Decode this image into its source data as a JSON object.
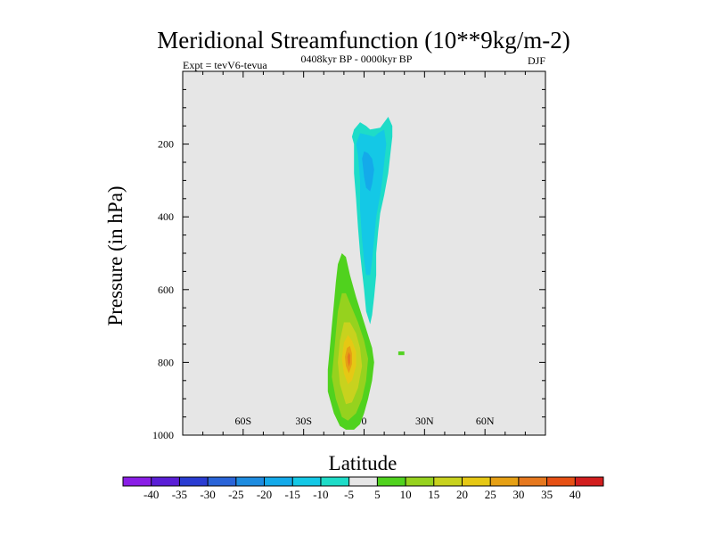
{
  "chart_data": {
    "type": "contour",
    "title": "Meridional Streamfunction (10**9kg/m-2)",
    "left_annotation": "Expt = tevV6-tevua",
    "center_annotation": "0408kyr BP - 0000kyr BP",
    "right_annotation": "DJF",
    "xlabel": "Latitude",
    "ylabel": "Pressure (in hPa)",
    "xlim": [
      -90,
      90
    ],
    "ylim": [
      1000,
      0
    ],
    "x_ticks": [
      {
        "value": -60,
        "label": "60S"
      },
      {
        "value": -30,
        "label": "30S"
      },
      {
        "value": 0,
        "label": "0"
      },
      {
        "value": 30,
        "label": "30N"
      },
      {
        "value": 60,
        "label": "60N"
      }
    ],
    "y_ticks": [
      {
        "value": 200,
        "label": "200"
      },
      {
        "value": 400,
        "label": "400"
      },
      {
        "value": 600,
        "label": "600"
      },
      {
        "value": 800,
        "label": "800"
      },
      {
        "value": 1000,
        "label": "1000"
      }
    ],
    "background_color": "#e6e6e6",
    "colorbar": {
      "orientation": "horizontal",
      "labels": [
        "-40",
        "-35",
        "-30",
        "-25",
        "-20",
        "-15",
        "-10",
        "-5",
        "5",
        "10",
        "15",
        "20",
        "25",
        "30",
        "35",
        "40"
      ],
      "colors": [
        "#8a1ee6",
        "#5a1ed6",
        "#2a3cd2",
        "#2a64d8",
        "#1e8ce0",
        "#14aaea",
        "#14c8e6",
        "#1edcc8",
        "#e6e6e6",
        "#50d21e",
        "#96d21e",
        "#c8d21e",
        "#e6c814",
        "#e6a014",
        "#e6781e",
        "#e65014",
        "#d21e1e"
      ]
    },
    "contours": [
      {
        "name": "negative cell",
        "value": -5,
        "color": "#1edcc8",
        "points": [
          [
            -5,
            200
          ],
          [
            -6,
            180
          ],
          [
            -5,
            160
          ],
          [
            -2,
            140
          ],
          [
            1,
            150
          ],
          [
            3,
            160
          ],
          [
            8,
            155
          ],
          [
            10,
            140
          ],
          [
            12,
            125
          ],
          [
            14,
            150
          ],
          [
            14,
            180
          ],
          [
            13,
            230
          ],
          [
            12,
            280
          ],
          [
            10,
            340
          ],
          [
            8,
            390
          ],
          [
            7,
            440
          ],
          [
            6,
            500
          ],
          [
            6,
            560
          ],
          [
            5,
            620
          ],
          [
            4,
            670
          ],
          [
            3,
            695
          ],
          [
            1,
            660
          ],
          [
            0,
            600
          ],
          [
            -1,
            550
          ],
          [
            -2,
            500
          ],
          [
            -3,
            430
          ],
          [
            -4,
            350
          ],
          [
            -5,
            280
          ]
        ]
      },
      {
        "name": "negative cell",
        "value": -10,
        "color": "#14c8e6",
        "points": [
          [
            -3,
            230
          ],
          [
            -4,
            200
          ],
          [
            -2,
            170
          ],
          [
            2,
            175
          ],
          [
            5,
            180
          ],
          [
            7,
            170
          ],
          [
            10,
            160
          ],
          [
            11,
            200
          ],
          [
            10,
            250
          ],
          [
            9,
            300
          ],
          [
            8,
            340
          ],
          [
            6,
            400
          ],
          [
            5,
            460
          ],
          [
            4,
            520
          ],
          [
            3,
            560
          ],
          [
            1,
            560
          ],
          [
            0,
            520
          ],
          [
            -1,
            460
          ],
          [
            -2,
            380
          ],
          [
            -2,
            300
          ]
        ]
      },
      {
        "name": "negative cell",
        "value": -15,
        "color": "#14aaea",
        "points": [
          [
            -1,
            240
          ],
          [
            0,
            220
          ],
          [
            2,
            225
          ],
          [
            4,
            240
          ],
          [
            5,
            270
          ],
          [
            4,
            310
          ],
          [
            3,
            330
          ],
          [
            1,
            320
          ],
          [
            0,
            290
          ]
        ]
      },
      {
        "name": "positive cell",
        "value": 5,
        "color": "#50d21e",
        "points": [
          [
            -15,
            940
          ],
          [
            -18,
            880
          ],
          [
            -18,
            820
          ],
          [
            -17,
            760
          ],
          [
            -16,
            700
          ],
          [
            -15,
            640
          ],
          [
            -14,
            580
          ],
          [
            -13,
            530
          ],
          [
            -11,
            500
          ],
          [
            -9,
            510
          ],
          [
            -7,
            560
          ],
          [
            -4,
            620
          ],
          [
            0,
            690
          ],
          [
            4,
            760
          ],
          [
            5,
            800
          ],
          [
            4,
            850
          ],
          [
            2,
            900
          ],
          [
            0,
            940
          ],
          [
            -2,
            970
          ],
          [
            -5,
            985
          ],
          [
            -9,
            985
          ],
          [
            -12,
            975
          ]
        ]
      },
      {
        "name": "positive cell",
        "value": 10,
        "color": "#96d21e",
        "points": [
          [
            -14,
            900
          ],
          [
            -16,
            840
          ],
          [
            -15,
            780
          ],
          [
            -14,
            720
          ],
          [
            -13,
            660
          ],
          [
            -11,
            610
          ],
          [
            -9,
            610
          ],
          [
            -6,
            650
          ],
          [
            -3,
            690
          ],
          [
            0,
            740
          ],
          [
            2,
            790
          ],
          [
            1,
            850
          ],
          [
            -1,
            900
          ],
          [
            -4,
            940
          ],
          [
            -8,
            960
          ],
          [
            -11,
            950
          ]
        ]
      },
      {
        "name": "positive cell",
        "value": 15,
        "color": "#c8d21e",
        "points": [
          [
            -12,
            860
          ],
          [
            -13,
            800
          ],
          [
            -12,
            740
          ],
          [
            -10,
            690
          ],
          [
            -7,
            690
          ],
          [
            -4,
            720
          ],
          [
            -2,
            760
          ],
          [
            -1,
            810
          ],
          [
            -3,
            870
          ],
          [
            -6,
            910
          ],
          [
            -9,
            915
          ]
        ]
      },
      {
        "name": "positive cell",
        "value": 20,
        "color": "#e6c814",
        "points": [
          [
            -10,
            830
          ],
          [
            -11,
            790
          ],
          [
            -10,
            745
          ],
          [
            -8,
            725
          ],
          [
            -6,
            740
          ],
          [
            -4,
            770
          ],
          [
            -4,
            810
          ],
          [
            -6,
            850
          ],
          [
            -8,
            860
          ]
        ]
      },
      {
        "name": "positive cell",
        "value": 25,
        "color": "#e6a014",
        "points": [
          [
            -9,
            810
          ],
          [
            -9.5,
            785
          ],
          [
            -8.5,
            760
          ],
          [
            -7,
            755
          ],
          [
            -6,
            775
          ],
          [
            -6,
            805
          ],
          [
            -7.5,
            830
          ]
        ]
      },
      {
        "name": "positive cell",
        "value": 30,
        "color": "#e6781e",
        "points": [
          [
            -8,
            800
          ],
          [
            -8.3,
            785
          ],
          [
            -7.6,
            772
          ],
          [
            -6.8,
            780
          ],
          [
            -6.9,
            800
          ],
          [
            -7.5,
            812
          ]
        ]
      },
      {
        "name": "small positive cell",
        "value": 5,
        "color": "#50d21e",
        "points": [
          [
            17,
            770
          ],
          [
            20,
            770
          ],
          [
            20,
            780
          ],
          [
            17,
            780
          ]
        ]
      }
    ]
  }
}
